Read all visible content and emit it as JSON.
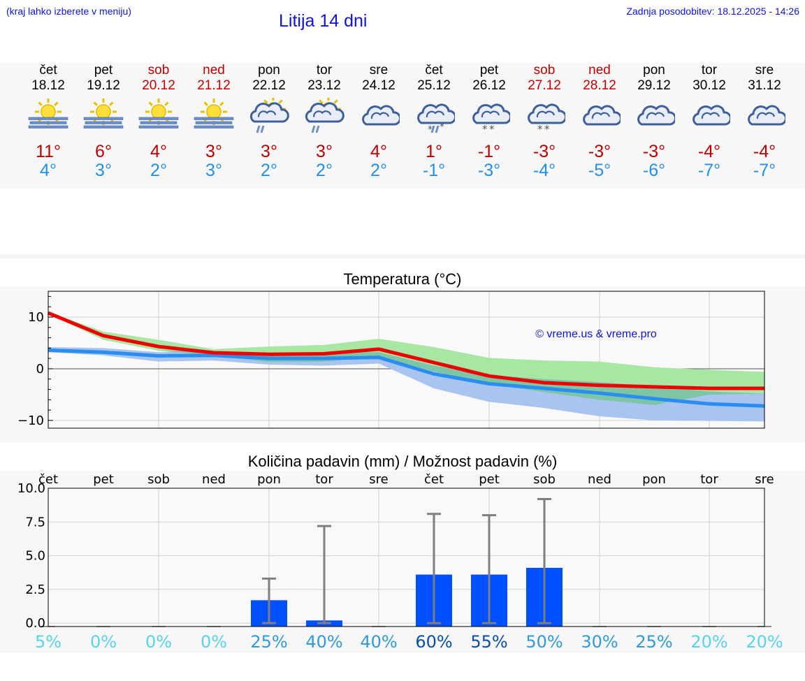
{
  "header": {
    "hint": "(kraj lahko izberete v meniju)",
    "title": "Litija 14 dni",
    "updated": "Zadnja posodobitev: 18.12.2025 - 14:26"
  },
  "days": [
    {
      "name": "čet",
      "date": "18.12",
      "weekend": false,
      "icon": "sunny-fog-icon",
      "hi": "11°",
      "lo": "4°"
    },
    {
      "name": "pet",
      "date": "19.12",
      "weekend": false,
      "icon": "sunny-fog-icon",
      "hi": "6°",
      "lo": "3°"
    },
    {
      "name": "sob",
      "date": "20.12",
      "weekend": true,
      "icon": "sunny-fog-icon",
      "hi": "4°",
      "lo": "2°"
    },
    {
      "name": "ned",
      "date": "21.12",
      "weekend": true,
      "icon": "sunny-fog-icon",
      "hi": "3°",
      "lo": "3°"
    },
    {
      "name": "pon",
      "date": "22.12",
      "weekend": false,
      "icon": "sun-cloud-rain-icon",
      "hi": "3°",
      "lo": "2°"
    },
    {
      "name": "tor",
      "date": "23.12",
      "weekend": false,
      "icon": "sun-cloud-rain-icon",
      "hi": "3°",
      "lo": "2°"
    },
    {
      "name": "sre",
      "date": "24.12",
      "weekend": false,
      "icon": "cloudy-icon",
      "hi": "4°",
      "lo": "2°"
    },
    {
      "name": "čet",
      "date": "25.12",
      "weekend": false,
      "icon": "cloud-sleet-icon",
      "hi": "1°",
      "lo": "-1°"
    },
    {
      "name": "pet",
      "date": "26.12",
      "weekend": false,
      "icon": "cloud-snow-icon",
      "hi": "-1°",
      "lo": "-3°"
    },
    {
      "name": "sob",
      "date": "27.12",
      "weekend": true,
      "icon": "cloud-snow-icon",
      "hi": "-3°",
      "lo": "-4°"
    },
    {
      "name": "ned",
      "date": "28.12",
      "weekend": true,
      "icon": "cloudy-icon",
      "hi": "-3°",
      "lo": "-5°"
    },
    {
      "name": "pon",
      "date": "29.12",
      "weekend": false,
      "icon": "cloudy-icon",
      "hi": "-3°",
      "lo": "-6°"
    },
    {
      "name": "tor",
      "date": "30.12",
      "weekend": false,
      "icon": "cloudy-icon",
      "hi": "-4°",
      "lo": "-7°"
    },
    {
      "name": "sre",
      "date": "31.12",
      "weekend": false,
      "icon": "cloudy-icon",
      "hi": "-4°",
      "lo": "-7°"
    }
  ],
  "colors": {
    "hi_text": "#c00000",
    "lo_text": "#2290e8",
    "max_line": "#f00000",
    "min_line": "#2a8ef0",
    "max_band": "#a8e6a4",
    "min_band": "#a9c4ef",
    "overlap_band": "#7cc6a6",
    "bar": "#0050ff",
    "whisker": "#7f7f7f"
  },
  "chart_data": [
    {
      "type": "line",
      "title": "Temperatura (°C)",
      "ylabel": "°C",
      "ylim": [
        -11.5,
        15
      ],
      "yticks": [
        -10,
        0,
        10
      ],
      "ytick_labels": [
        "−10",
        "0",
        "10"
      ],
      "watermark": "© vreme.us & vreme.pro",
      "x": [
        0,
        1,
        2,
        3,
        4,
        5,
        6,
        7,
        8,
        9,
        10,
        11,
        12,
        13
      ],
      "series": [
        {
          "name": "max",
          "values": [
            10.8,
            6.4,
            4.3,
            3.1,
            2.8,
            2.9,
            3.8,
            1.2,
            -1.4,
            -2.7,
            -3.2,
            -3.5,
            -3.8,
            -3.8
          ],
          "band_low": [
            10.6,
            5.6,
            3.5,
            2.6,
            1.3,
            1.4,
            2.2,
            -0.5,
            -3.0,
            -4.5,
            -6.0,
            -7.0,
            -5.0,
            -4.8
          ],
          "band_high": [
            11.0,
            7.2,
            5.6,
            3.8,
            4.3,
            4.6,
            5.8,
            4.2,
            2.1,
            1.6,
            1.4,
            0.3,
            -0.2,
            -0.6
          ]
        },
        {
          "name": "min",
          "values": [
            3.6,
            3.2,
            2.5,
            2.6,
            2.0,
            2.0,
            2.2,
            -1.0,
            -2.9,
            -3.8,
            -4.7,
            -5.8,
            -6.8,
            -7.2
          ],
          "band_low": [
            3.2,
            2.6,
            1.4,
            1.6,
            0.8,
            0.6,
            1.0,
            -3.8,
            -6.4,
            -7.6,
            -9.2,
            -10.0,
            -10.1,
            -10.2
          ],
          "band_high": [
            4.2,
            4.0,
            3.2,
            3.4,
            3.0,
            3.2,
            3.2,
            0.6,
            -1.2,
            -2.0,
            -2.6,
            -3.4,
            -4.4,
            -4.8
          ]
        }
      ]
    },
    {
      "type": "bar",
      "title": "Količina padavin (mm) / Možnost padavin (%)",
      "categories": [
        "čet",
        "pet",
        "sob",
        "ned",
        "pon",
        "tor",
        "sre",
        "čet",
        "pet",
        "sob",
        "ned",
        "pon",
        "tor",
        "sre"
      ],
      "ylim": [
        -0.25,
        10
      ],
      "yticks": [
        0,
        2.5,
        5,
        7.5,
        10
      ],
      "ytick_labels": [
        "0.0",
        "2.5",
        "5.0",
        "7.5",
        "10.0"
      ],
      "values": [
        0,
        0,
        0,
        0,
        1.7,
        0.2,
        0,
        3.6,
        3.6,
        4.1,
        0,
        0,
        0,
        0
      ],
      "error_low": [
        0,
        0,
        0,
        0,
        0,
        0,
        0,
        0,
        0,
        0,
        0,
        0,
        0,
        0
      ],
      "error_high": [
        0,
        0,
        0,
        0,
        3.3,
        7.2,
        0,
        8.1,
        8.0,
        9.2,
        0,
        0,
        0,
        0
      ],
      "probabilities": [
        "5%",
        "0%",
        "0%",
        "0%",
        "25%",
        "40%",
        "40%",
        "60%",
        "55%",
        "50%",
        "30%",
        "25%",
        "20%",
        "20%"
      ],
      "probability_values": [
        5,
        0,
        0,
        0,
        25,
        40,
        40,
        60,
        55,
        50,
        30,
        25,
        20,
        20
      ]
    }
  ]
}
